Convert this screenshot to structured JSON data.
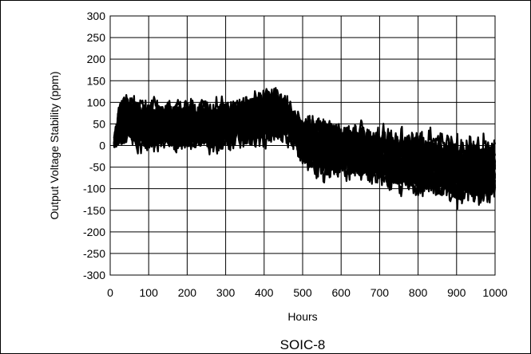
{
  "chart_data": {
    "type": "line",
    "title": "",
    "caption": "SOIC-8",
    "xlabel": "Hours",
    "ylabel": "Output Voltage Stability (ppm)",
    "xlim": [
      0,
      1000
    ],
    "ylim": [
      -300,
      300
    ],
    "xticks": [
      0,
      100,
      200,
      300,
      400,
      500,
      600,
      700,
      800,
      900,
      1000
    ],
    "yticks": [
      300,
      250,
      200,
      150,
      100,
      50,
      0,
      -50,
      -100,
      -150,
      -200,
      -250,
      -300
    ],
    "grid": true,
    "legend": "none",
    "line_color": "#000000",
    "series_count": 24,
    "envelope": {
      "x": [
        10,
        25,
        40,
        60,
        80,
        100,
        150,
        200,
        250,
        300,
        350,
        400,
        425,
        450,
        470,
        500,
        550,
        600,
        650,
        700,
        750,
        800,
        850,
        900,
        950,
        1000
      ],
      "upper": [
        20,
        110,
        135,
        120,
        115,
        135,
        110,
        115,
        110,
        115,
        120,
        145,
        170,
        140,
        110,
        75,
        80,
        80,
        65,
        70,
        60,
        70,
        60,
        50,
        55,
        45
      ],
      "mean": [
        5,
        50,
        60,
        55,
        45,
        50,
        45,
        45,
        45,
        50,
        55,
        65,
        70,
        65,
        50,
        10,
        -5,
        -10,
        -20,
        -25,
        -35,
        -40,
        -45,
        -55,
        -60,
        -60
      ],
      "lower": [
        -20,
        -60,
        -35,
        -45,
        -40,
        -45,
        -40,
        -50,
        -55,
        -50,
        -45,
        -30,
        -30,
        -20,
        -25,
        -90,
        -140,
        -110,
        -110,
        -120,
        -130,
        -140,
        -150,
        -155,
        -165,
        -175
      ]
    }
  }
}
